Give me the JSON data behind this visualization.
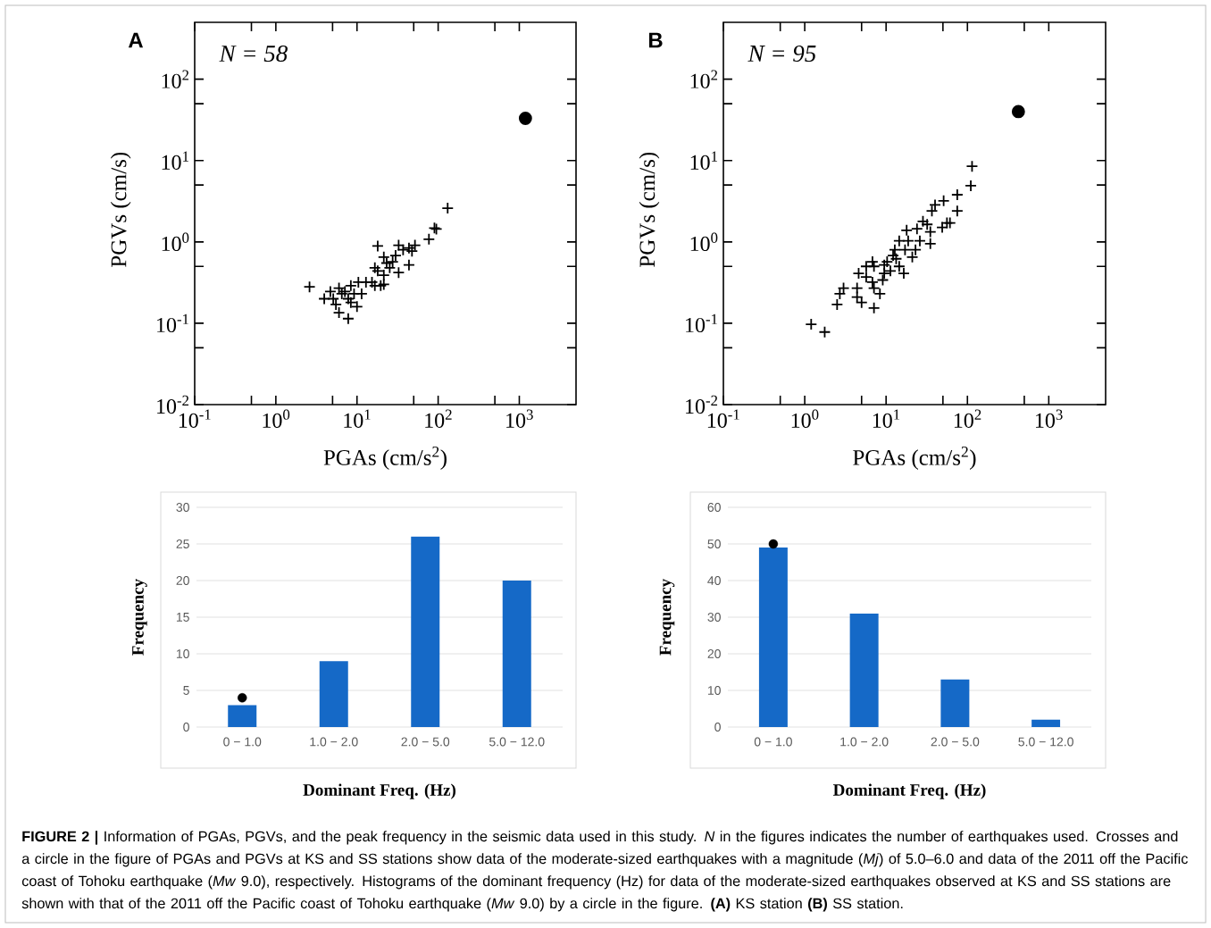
{
  "chart_data": [
    {
      "type": "scatter",
      "log": "xy",
      "xlabel": "PGAs (cm/s$^{2}$)",
      "ylabel": "PGVs (cm/s)",
      "xlim": [
        0.1,
        5000
      ],
      "ylim": [
        0.01,
        500
      ],
      "xticks": [
        {
          "value": 0.1,
          "label": "10$^{-1}$"
        },
        {
          "value": 0.5,
          "label": null
        },
        {
          "value": 1,
          "label": "10$^{0}$"
        },
        {
          "value": 5,
          "label": null
        },
        {
          "value": 10,
          "label": "10$^{1}$"
        },
        {
          "value": 50,
          "label": null
        },
        {
          "value": 100,
          "label": "10$^{2}$"
        },
        {
          "value": 500,
          "label": null
        },
        {
          "value": 1000,
          "label": "10$^{3}$"
        }
      ],
      "yticks": [
        {
          "value": 0.01,
          "label": "10$^{-2}$"
        },
        {
          "value": 0.05,
          "label": null
        },
        {
          "value": 0.1,
          "label": "10$^{-1}$"
        },
        {
          "value": 0.5,
          "label": null
        },
        {
          "value": 1,
          "label": "10$^{0}$"
        },
        {
          "value": 5,
          "label": null
        },
        {
          "value": 10,
          "label": "10$^{1}$"
        },
        {
          "value": 50,
          "label": null
        },
        {
          "value": 100,
          "label": "10$^{2}$"
        }
      ],
      "annotations": [
        "A",
        "N = 58"
      ],
      "series": [
        {
          "color": "#000000",
          "marker": "cross",
          "x": [
            131,
            90,
            95,
            77,
            18,
            32.6,
            51.8,
            43.7,
            47.6,
            43.7,
            32.6,
            29.9,
            21.4,
            23.2,
            25.3,
            16.6,
            21.4,
            15.3,
            16.6,
            19.6,
            21.4,
            10.4,
            11.4,
            8.4,
            9.2,
            7.8,
            6.0,
            3.95,
            5.1,
            5.5,
            6.0,
            7.8,
            10,
            8.4,
            6.5,
            2.6,
            12.9,
            18,
            27.5,
            37,
            7.1,
            4.7
          ],
          "values": [
            2.6,
            1.48,
            1.44,
            1.08,
            0.89,
            0.91,
            0.91,
            0.84,
            0.77,
            0.52,
            0.42,
            0.68,
            0.65,
            0.55,
            0.48,
            0.48,
            0.39,
            0.32,
            0.29,
            0.29,
            0.3,
            0.32,
            0.23,
            0.29,
            0.23,
            0.2,
            0.27,
            0.2,
            0.2,
            0.17,
            0.135,
            0.114,
            0.16,
            0.18,
            0.23,
            0.28,
            0.32,
            0.44,
            0.57,
            0.8,
            0.245,
            0.245
          ]
        },
        {
          "color": "#000000",
          "marker": "circle",
          "x": [
            1190
          ],
          "values": [
            33
          ]
        }
      ]
    },
    {
      "type": "scatter",
      "log": "xy",
      "xlabel": "PGAs (cm/s$^{2}$)",
      "ylabel": "PGVs (cm/s)",
      "xlim": [
        0.1,
        5000
      ],
      "ylim": [
        0.01,
        500
      ],
      "xticks": [
        {
          "value": 0.1,
          "label": "10$^{-1}$"
        },
        {
          "value": 0.5,
          "label": null
        },
        {
          "value": 1,
          "label": "10$^{0}$"
        },
        {
          "value": 5,
          "label": null
        },
        {
          "value": 10,
          "label": "10$^{1}$"
        },
        {
          "value": 50,
          "label": null
        },
        {
          "value": 100,
          "label": "10$^{2}$"
        },
        {
          "value": 500,
          "label": null
        },
        {
          "value": 1000,
          "label": "10$^{3}$"
        }
      ],
      "yticks": [
        {
          "value": 0.01,
          "label": "10$^{-2}$"
        },
        {
          "value": 0.05,
          "label": null
        },
        {
          "value": 0.1,
          "label": "10$^{-1}$"
        },
        {
          "value": 0.5,
          "label": null
        },
        {
          "value": 1,
          "label": "10$^{0}$"
        },
        {
          "value": 5,
          "label": null
        },
        {
          "value": 10,
          "label": "10$^{1}$"
        },
        {
          "value": 50,
          "label": null
        },
        {
          "value": 100,
          "label": "10$^{2}$"
        }
      ],
      "annotations": [
        "B",
        "N = 95"
      ],
      "series": [
        {
          "color": "#000000",
          "marker": "cross",
          "x": [
            114,
            110,
            75,
            75,
            51,
            40,
            36.6,
            56,
            61,
            49,
            32,
            35,
            24,
            17.9,
            14.5,
            18.7,
            23,
            35,
            26,
            12.8,
            17.1,
            21,
            13.3,
            10.3,
            14.5,
            11.3,
            9.5,
            16.5,
            6.8,
            7.1,
            5.7,
            4.6,
            5.7,
            6.8,
            9.1,
            7.1,
            4.4,
            3.0,
            2.7,
            4.4,
            5.0,
            2.5,
            7.1,
            8.4,
            1.2,
            1.76,
            28.4,
            12.2,
            9.5
          ],
          "values": [
            8.5,
            4.9,
            3.8,
            2.4,
            3.2,
            2.85,
            2.4,
            1.71,
            1.71,
            1.51,
            1.64,
            1.33,
            1.45,
            1.39,
            1.03,
            1.03,
            0.8,
            0.95,
            1.03,
            0.8,
            0.8,
            0.65,
            0.62,
            0.57,
            0.5,
            0.44,
            0.41,
            0.41,
            0.57,
            0.5,
            0.5,
            0.41,
            0.37,
            0.32,
            0.34,
            0.27,
            0.27,
            0.27,
            0.23,
            0.21,
            0.18,
            0.17,
            0.154,
            0.23,
            0.097,
            0.078,
            1.79,
            0.68,
            0.52
          ]
        },
        {
          "color": "#000000",
          "marker": "circle",
          "x": [
            423
          ],
          "values": [
            40
          ]
        }
      ]
    },
    {
      "type": "bar",
      "categories": [
        "0 − 1.0",
        "1.0 − 2.0",
        "2.0 − 5.0",
        "5.0 − 12.0"
      ],
      "xlabel": "Dominant Freq. (Hz)",
      "ylabel": "Frequency",
      "ylim": [
        0,
        30
      ],
      "yticks": [
        0,
        5,
        10,
        15,
        20,
        25,
        30
      ],
      "grid": "y",
      "series": [
        {
          "color": "#1569c7",
          "values": [
            3,
            9,
            26,
            20
          ]
        },
        {
          "type": "scatter",
          "color": "#000000",
          "marker": "circle",
          "x": [
            "0 − 1.0"
          ],
          "values": [
            4
          ]
        }
      ]
    },
    {
      "type": "bar",
      "categories": [
        "0 − 1.0",
        "1.0 − 2.0",
        "2.0 − 5.0",
        "5.0 − 12.0"
      ],
      "xlabel": "Dominant Freq. (Hz)",
      "ylabel": "Frequency",
      "ylim": [
        0,
        60
      ],
      "yticks": [
        0,
        10,
        20,
        30,
        40,
        50,
        60
      ],
      "grid": "y",
      "series": [
        {
          "color": "#1569c7",
          "values": [
            49,
            31,
            13,
            2
          ]
        },
        {
          "type": "scatter",
          "color": "#000000",
          "marker": "circle",
          "x": [
            "0 − 1.0"
          ],
          "values": [
            50
          ]
        }
      ],
      "annotations": [
        "**FIGURE 2 |** Information of PGAs, PGVs, and the peak frequency in the seismic data used in this study. *N* in the figures indicates the number of earthquakes used. Crosses and a circle in the figure of PGAs and PGVs at KS and SS stations show data of the moderate-sized earthquakes with a magnitude (*Mj*) of 5.0–6.0 and data of the 2011 off the Pacific coast of Tohoku earthquake (*Mw* 9.0), respectively. Histograms of the dominant frequency (Hz) for data of the moderate-sized earthquakes observed at KS and SS stations are shown with that of the 2011 off the Pacific coast of Tohoku earthquake (*Mw* 9.0) by a circle in the figure. **(A)** KS station **(B)** SS station."
      ]
    }
  ]
}
